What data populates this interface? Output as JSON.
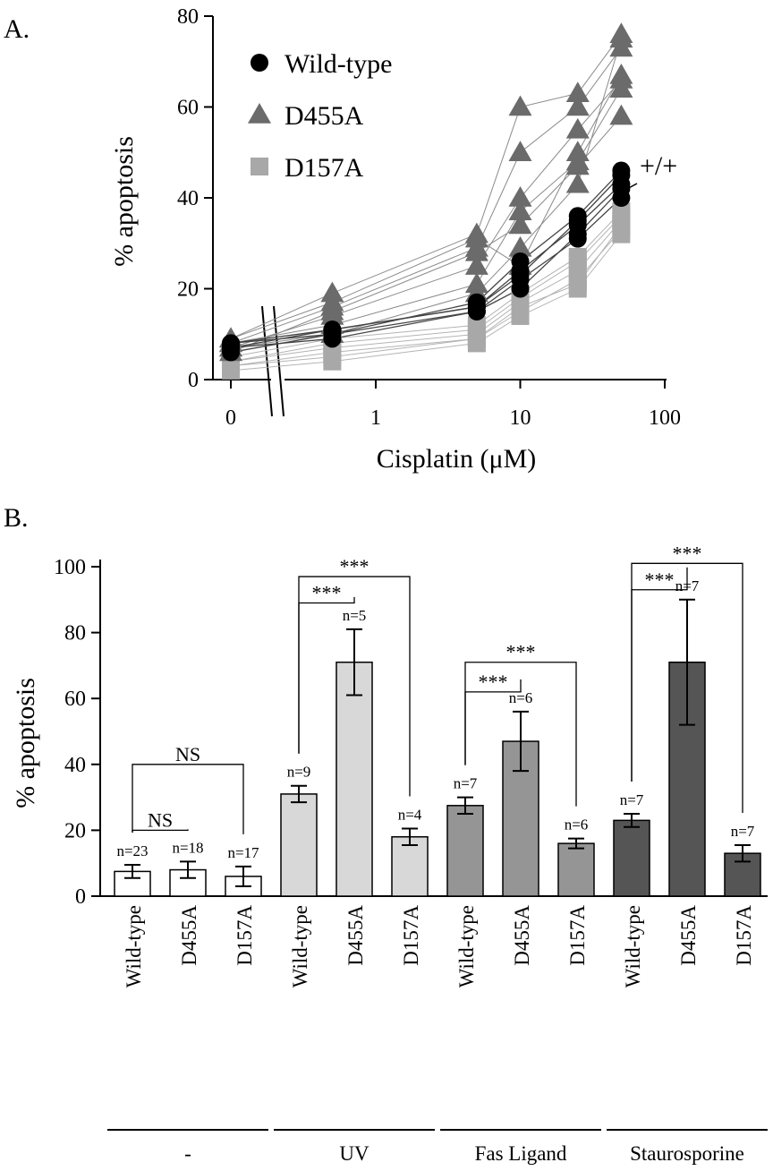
{
  "chart_data": [
    {
      "panel": "A.",
      "type": "line",
      "xlabel": "Cisplatin (μM)",
      "ylabel": "% apoptosis",
      "xscale": "log",
      "x_ticks": [
        "0",
        "1",
        "10",
        "100"
      ],
      "y_ticks": [
        "0",
        "20",
        "40",
        "60",
        "80"
      ],
      "ylim": [
        0,
        85
      ],
      "legend_position": "top-left",
      "annotation": "+/+",
      "x": [
        0,
        0.5,
        5,
        10,
        25,
        50
      ],
      "series": [
        {
          "name": "Wild-type",
          "marker": "circle",
          "color": "#000000",
          "line_color": "#444444",
          "lines": [
            [
              8,
              10,
              15,
              22,
              31,
              40
            ],
            [
              7,
              11,
              16,
              24,
              34,
              43
            ],
            [
              6,
              10,
              17,
              26,
              36,
              46
            ],
            [
              7,
              9,
              15,
              20,
              32,
              42
            ],
            [
              8,
              11,
              16,
              23,
              35,
              45
            ]
          ]
        },
        {
          "name": "D455A",
          "marker": "triangle",
          "color": "#6b6b6b",
          "line_color": "#8a8a8a",
          "lines": [
            [
              9,
              19,
              32,
              60,
              63,
              76
            ],
            [
              8,
              16,
              29,
              50,
              60,
              73
            ],
            [
              7,
              14,
              25,
              40,
              55,
              66
            ],
            [
              8,
              12,
              21,
              37,
              48,
              64
            ],
            [
              6,
              15,
              28,
              34,
              47,
              58
            ],
            [
              7,
              10,
              19,
              29,
              43,
              75
            ],
            [
              9,
              17,
              31,
              25,
              50,
              67
            ]
          ]
        },
        {
          "name": "D157A",
          "marker": "square",
          "color": "#a8a8a8",
          "line_color": "#b4b4b4",
          "lines": [
            [
              5,
              9,
              12,
              19,
              27,
              37
            ],
            [
              4,
              7,
              10,
              17,
              24,
              35
            ],
            [
              3,
              6,
              9,
              15,
              22,
              33
            ],
            [
              2,
              4,
              8,
              14,
              20,
              32
            ],
            [
              4,
              8,
              11,
              18,
              26,
              36
            ],
            [
              3,
              5,
              9,
              16,
              21,
              34
            ]
          ]
        }
      ]
    },
    {
      "panel": "B.",
      "type": "bar",
      "ylabel": "% apoptosis",
      "ylim": [
        0,
        100
      ],
      "y_ticks": [
        "0",
        "20",
        "40",
        "60",
        "80",
        "100"
      ],
      "groups": [
        {
          "label": "-",
          "color": "#ffffff",
          "bars": [
            {
              "category": "Wild-type",
              "value": 7.5,
              "err": 2,
              "n": "n=23"
            },
            {
              "category": "D455A",
              "value": 8,
              "err": 2.5,
              "n": "n=18"
            },
            {
              "category": "D157A",
              "value": 6,
              "err": 3,
              "n": "n=17"
            }
          ]
        },
        {
          "label": "UV",
          "color": "#d8d8d8",
          "bars": [
            {
              "category": "Wild-type",
              "value": 31,
              "err": 2.5,
              "n": "n=9"
            },
            {
              "category": "D455A",
              "value": 71,
              "err": 10,
              "n": "n=5"
            },
            {
              "category": "D157A",
              "value": 18,
              "err": 2.5,
              "n": "n=4"
            }
          ]
        },
        {
          "label": "Fas Ligand",
          "color": "#959595",
          "bars": [
            {
              "category": "Wild-type",
              "value": 27.5,
              "err": 2.5,
              "n": "n=7"
            },
            {
              "category": "D455A",
              "value": 47,
              "err": 9,
              "n": "n=6"
            },
            {
              "category": "D157A",
              "value": 16,
              "err": 1.5,
              "n": "n=6"
            }
          ]
        },
        {
          "label": "Staurosporine",
          "color": "#555555",
          "bars": [
            {
              "category": "Wild-type",
              "value": 23,
              "err": 2,
              "n": "n=7"
            },
            {
              "category": "D455A",
              "value": 71,
              "err": 19,
              "n": "n=7"
            },
            {
              "category": "D157A",
              "value": 13,
              "err": 2.5,
              "n": "n=7"
            }
          ]
        }
      ],
      "significance": [
        {
          "group": 0,
          "from": 0,
          "to": 1,
          "label": "NS",
          "level": 20
        },
        {
          "group": 0,
          "from": 0,
          "to": 2,
          "label": "NS",
          "level": 40
        },
        {
          "group": 1,
          "from": 0,
          "to": 1,
          "label": "***",
          "level": 89
        },
        {
          "group": 1,
          "from": 0,
          "to": 2,
          "label": "***",
          "level": 97
        },
        {
          "group": 2,
          "from": 0,
          "to": 1,
          "label": "***",
          "level": 62
        },
        {
          "group": 2,
          "from": 0,
          "to": 2,
          "label": "***",
          "level": 71
        },
        {
          "group": 3,
          "from": 0,
          "to": 1,
          "label": "***",
          "level": 93
        },
        {
          "group": 3,
          "from": 0,
          "to": 2,
          "label": "***",
          "level": 101
        }
      ]
    }
  ]
}
